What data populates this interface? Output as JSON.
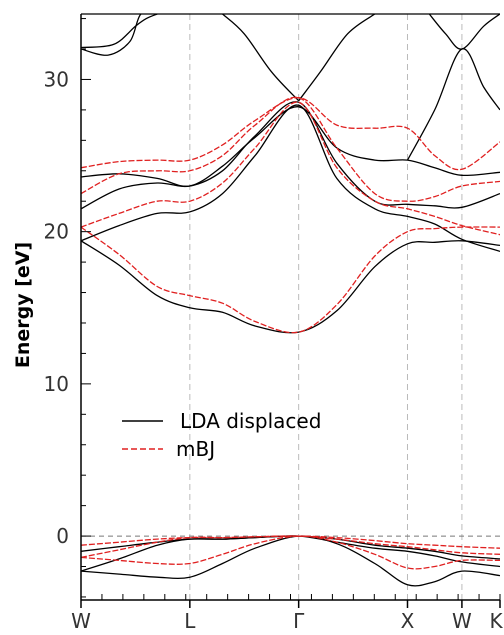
{
  "chart_data": {
    "type": "line",
    "ylabel": "Energy [eV]",
    "ylim": [
      -4.2,
      34.3
    ],
    "yticks": [
      0,
      10,
      20,
      30
    ],
    "x_labels": [
      "W",
      "L",
      "Γ",
      "X",
      "W",
      "K"
    ],
    "x_positions": [
      0,
      1,
      2,
      3,
      3.5,
      3.85
    ],
    "fermi_level": 0,
    "grid": "vertical dashed lines at high-symmetry points",
    "legend_location": "center-left",
    "series": [
      {
        "name": "LDA displaced",
        "color": "#000000",
        "style": "solid",
        "bands": [
          {
            "x": [
              0,
              0.35,
              0.7,
              1,
              1.3,
              1.6,
              2,
              2.35,
              2.7,
              3,
              3.25,
              3.5,
              3.85
            ],
            "y": [
              -2.3,
              -2.5,
              -2.7,
              -2.7,
              -1.8,
              -0.8,
              0,
              -0.5,
              -1.8,
              -3.2,
              -3.0,
              -2.3,
              -2.6
            ]
          },
          {
            "x": [
              0,
              0.35,
              0.7,
              1,
              1.3,
              1.6,
              2,
              2.35,
              2.7,
              3,
              3.25,
              3.5,
              3.85
            ],
            "y": [
              -2.3,
              -1.5,
              -0.6,
              -0.2,
              -0.2,
              -0.1,
              0,
              -0.4,
              -0.8,
              -1.0,
              -1.3,
              -1.7,
              -2.0
            ]
          },
          {
            "x": [
              0,
              0.35,
              0.7,
              1,
              1.3,
              1.6,
              2,
              2.35,
              2.7,
              3,
              3.25,
              3.5,
              3.85
            ],
            "y": [
              -1.0,
              -0.7,
              -0.4,
              -0.2,
              -0.2,
              -0.1,
              0,
              -0.2,
              -0.6,
              -0.8,
              -1.0,
              -1.3,
              -1.5
            ]
          },
          {
            "x": [
              0,
              0.35,
              0.7,
              1,
              1.3,
              1.6,
              2,
              2.35,
              2.7,
              3,
              3.25,
              3.5,
              3.85
            ],
            "y": [
              19.4,
              17.8,
              15.8,
              15.0,
              14.7,
              13.8,
              13.4,
              14.8,
              17.7,
              19.2,
              19.3,
              19.4,
              19.1
            ]
          },
          {
            "x": [
              0,
              0.35,
              0.7,
              1,
              1.3,
              1.6,
              2,
              2.35,
              2.7,
              3,
              3.25,
              3.5,
              3.85
            ],
            "y": [
              19.4,
              20.4,
              21.2,
              21.3,
              22.5,
              25.0,
              28.3,
              23.5,
              21.5,
              21.0,
              20.5,
              19.5,
              18.7
            ]
          },
          {
            "x": [
              0,
              0.35,
              0.7,
              1,
              1.3,
              1.6,
              2,
              2.35,
              2.7,
              3,
              3.25,
              3.5,
              3.85
            ],
            "y": [
              21.5,
              22.8,
              23.2,
              23.0,
              24.0,
              26.3,
              28.5,
              24.5,
              22.0,
              21.8,
              21.7,
              21.6,
              22.5
            ]
          },
          {
            "x": [
              0,
              0.35,
              0.7,
              1,
              1.3,
              1.6,
              2,
              2.35,
              2.7,
              3,
              3.25,
              3.5,
              3.85
            ],
            "y": [
              23.6,
              23.8,
              23.5,
              23.0,
              24.3,
              26.2,
              28.2,
              25.5,
              24.7,
              24.7,
              24.2,
              23.7,
              23.9
            ]
          },
          {
            "x": [
              0,
              0.3,
              0.5,
              0.6,
              0.7
            ],
            "y": [
              32.1,
              32.3,
              33.5,
              34.0,
              34.3
            ]
          },
          {
            "x": [
              0,
              0.25,
              0.45,
              0.55,
              0.7
            ],
            "y": [
              32.0,
              31.6,
              32.5,
              34.3,
              34.3
            ]
          },
          {
            "x": [
              1.3,
              1.5,
              1.75,
              2
            ],
            "y": [
              34.3,
              33.0,
              30.5,
              28.6
            ]
          },
          {
            "x": [
              2,
              2.2,
              2.45,
              2.7
            ],
            "y": [
              28.6,
              30.5,
              33.0,
              34.3
            ]
          },
          {
            "x": [
              3,
              3.25,
              3.5,
              3.7,
              3.85
            ],
            "y": [
              24.7,
              28.0,
              32.0,
              29.5,
              28.0
            ]
          },
          {
            "x": [
              3.2,
              3.35,
              3.5,
              3.7,
              3.85
            ],
            "y": [
              34.3,
              33.0,
              32.0,
              33.5,
              34.3
            ]
          }
        ]
      },
      {
        "name": "mBJ",
        "color": "#e02020",
        "style": "dashed",
        "bands": [
          {
            "x": [
              0,
              0.35,
              0.7,
              1,
              1.3,
              1.6,
              2,
              2.35,
              2.7,
              3,
              3.25,
              3.5,
              3.85
            ],
            "y": [
              -1.4,
              -1.6,
              -1.8,
              -1.8,
              -1.2,
              -0.5,
              0,
              -0.4,
              -1.2,
              -2.1,
              -2.0,
              -1.6,
              -1.6
            ]
          },
          {
            "x": [
              0,
              0.35,
              0.7,
              1,
              1.3,
              1.6,
              2,
              2.35,
              2.7,
              3,
              3.25,
              3.5,
              3.85
            ],
            "y": [
              -1.4,
              -0.9,
              -0.4,
              -0.1,
              -0.1,
              -0.05,
              0,
              -0.2,
              -0.5,
              -0.7,
              -0.9,
              -1.1,
              -1.2
            ]
          },
          {
            "x": [
              0,
              0.35,
              0.7,
              1,
              1.3,
              1.6,
              2,
              2.35,
              2.7,
              3,
              3.25,
              3.5,
              3.85
            ],
            "y": [
              -0.6,
              -0.4,
              -0.2,
              -0.1,
              -0.1,
              -0.05,
              0,
              -0.1,
              -0.3,
              -0.5,
              -0.6,
              -0.7,
              -0.8
            ]
          },
          {
            "x": [
              0,
              0.35,
              0.7,
              1,
              1.3,
              1.6,
              2,
              2.35,
              2.7,
              3,
              3.25,
              3.5,
              3.85
            ],
            "y": [
              20.3,
              18.5,
              16.4,
              15.8,
              15.3,
              14.1,
              13.4,
              15.2,
              18.4,
              20.0,
              20.2,
              20.3,
              20.3
            ]
          },
          {
            "x": [
              0,
              0.35,
              0.7,
              1,
              1.3,
              1.6,
              2,
              2.35,
              2.7,
              3,
              3.25,
              3.5,
              3.85
            ],
            "y": [
              20.3,
              21.2,
              22.0,
              22.0,
              23.2,
              25.5,
              28.5,
              24.2,
              22.0,
              21.5,
              21.0,
              20.4,
              19.8
            ]
          },
          {
            "x": [
              0,
              0.35,
              0.7,
              1,
              1.3,
              1.6,
              2,
              2.35,
              2.7,
              3,
              3.25,
              3.5,
              3.85
            ],
            "y": [
              22.5,
              23.8,
              24.0,
              24.0,
              25.0,
              27.0,
              28.8,
              25.5,
              22.5,
              22.0,
              22.3,
              23.0,
              23.3
            ]
          },
          {
            "x": [
              0,
              0.35,
              0.7,
              1,
              1.3,
              1.6,
              2,
              2.35,
              2.7,
              3,
              3.25,
              3.5,
              3.85
            ],
            "y": [
              24.2,
              24.6,
              24.7,
              24.7,
              25.7,
              27.3,
              28.8,
              27.0,
              26.8,
              26.8,
              25.0,
              24.1,
              25.9
            ]
          }
        ]
      }
    ]
  }
}
